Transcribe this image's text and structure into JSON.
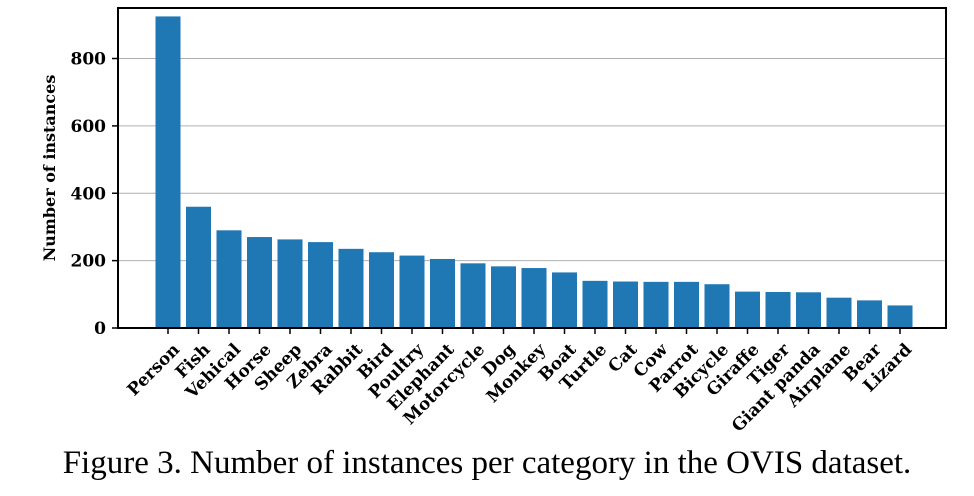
{
  "caption": "Figure 3. Number of instances per category in the OVIS dataset.",
  "chart_data": {
    "type": "bar",
    "ylabel": "Number of instances",
    "xlabel": "",
    "ylim": [
      0,
      950
    ],
    "yticks": [
      0,
      200,
      400,
      600,
      800
    ],
    "grid": "horizontal",
    "bar_color": "#1f77b4",
    "categories": [
      "Person",
      "Fish",
      "Vehical",
      "Horse",
      "Sheep",
      "Zebra",
      "Rabbit",
      "Bird",
      "Poultry",
      "Elephant",
      "Motorcycle",
      "Dog",
      "Monkey",
      "Boat",
      "Turtle",
      "Cat",
      "Cow",
      "Parrot",
      "Bicycle",
      "Giraffe",
      "Tiger",
      "Giant panda",
      "Airplane",
      "Bear",
      "Lizard"
    ],
    "values": [
      925,
      360,
      290,
      270,
      263,
      255,
      235,
      225,
      215,
      205,
      192,
      183,
      178,
      165,
      140,
      138,
      137,
      137,
      130,
      108,
      107,
      106,
      90,
      82,
      67
    ]
  }
}
